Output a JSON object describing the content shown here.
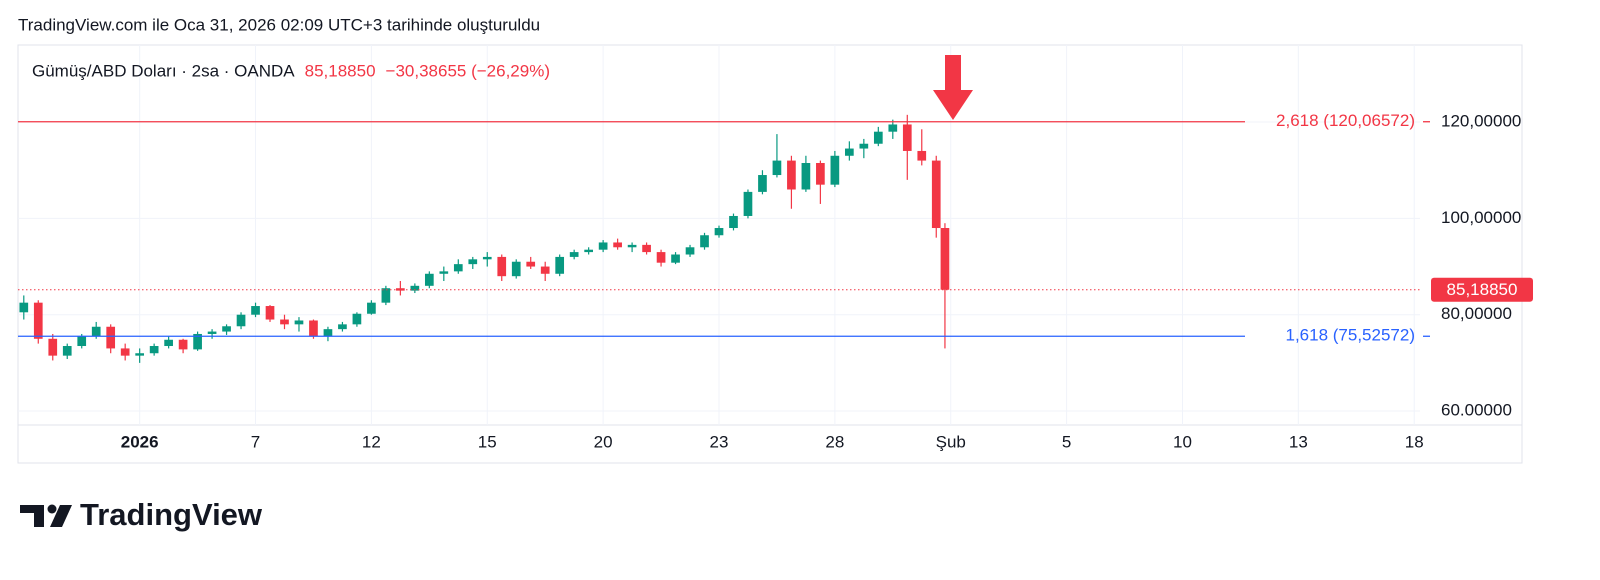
{
  "header": {
    "created": "TradingView.com ile Oca 31, 2026 02:09 UTC+3 tarihinde oluşturuldu"
  },
  "chart_data": {
    "type": "candlestick",
    "title": "Gümüş/ABD Doları · 2sa · OANDA",
    "last_price": {
      "value": 85.1885,
      "label": "85,18850"
    },
    "change": "−30,38655 (−26,29%)",
    "up_color": "#089981",
    "down_color": "#f23645",
    "x": [
      -1.0,
      -0.875,
      -0.75,
      -0.625,
      -0.5,
      -0.375,
      -0.25,
      -0.125,
      0,
      0.125,
      0.25,
      0.375,
      0.5,
      0.625,
      0.75,
      0.875,
      1.0,
      1.125,
      1.25,
      1.375,
      1.5,
      1.625,
      1.75,
      1.875,
      2.0,
      2.125,
      2.25,
      2.375,
      2.5,
      2.625,
      2.75,
      2.875,
      3.0,
      3.125,
      3.25,
      3.375,
      3.5,
      3.625,
      3.75,
      3.875,
      4.0,
      4.125,
      4.25,
      4.375,
      4.5,
      4.625,
      4.75,
      4.875,
      5.0,
      5.125,
      5.25,
      5.375,
      5.5,
      5.625,
      5.75,
      5.875,
      6.0,
      6.125,
      6.25,
      6.375,
      6.5,
      6.625,
      6.75,
      6.875,
      6.95
    ],
    "open": [
      80.5,
      82.5,
      75,
      71.5,
      73.5,
      75.5,
      77.5,
      73,
      71.5,
      72,
      73.5,
      74.8,
      72.8,
      76,
      76.5,
      77.6,
      80,
      81.8,
      79,
      78,
      78.8,
      75.5,
      77,
      78,
      80.2,
      82.5,
      85.5,
      85,
      86,
      88.5,
      89,
      90.5,
      91.5,
      92,
      88,
      91,
      90,
      88.5,
      92,
      93,
      93.5,
      95,
      94,
      94.5,
      93,
      90.8,
      92.5,
      94,
      96.5,
      98,
      100.5,
      105.5,
      109,
      112,
      106,
      111.5,
      107,
      113,
      114.5,
      115.5,
      118,
      119.5,
      114,
      112,
      98
    ],
    "high": [
      84,
      83,
      76,
      74,
      76,
      78.5,
      78,
      74,
      73,
      74,
      75.5,
      75,
      76.5,
      77,
      78,
      80.5,
      82.5,
      82,
      80,
      79.5,
      79,
      77.5,
      78.5,
      80.5,
      83,
      86,
      87,
      86.5,
      89,
      90,
      91.5,
      92,
      93,
      92.5,
      91.5,
      92,
      91,
      92.5,
      93.5,
      94,
      95.5,
      95.8,
      95,
      95,
      93.5,
      93,
      94.5,
      97,
      98.5,
      101,
      106,
      110,
      117.5,
      113,
      113,
      112,
      114,
      116,
      116.5,
      119,
      120.5,
      121.5,
      118.5,
      113,
      99
    ],
    "low": [
      79,
      74,
      70.5,
      70.8,
      73,
      75,
      72,
      70.5,
      70,
      71.5,
      73,
      72,
      72.5,
      75,
      75.8,
      77,
      79.5,
      78.5,
      77,
      76.5,
      75,
      74.5,
      76.5,
      77.5,
      80,
      82,
      84,
      84.5,
      85.5,
      87,
      88.5,
      89.5,
      90,
      87,
      87.5,
      89.5,
      87,
      88,
      91.5,
      92.5,
      93,
      93.5,
      93,
      92.5,
      90,
      90.5,
      92,
      93.5,
      96,
      97.5,
      100,
      105,
      108.5,
      102,
      105.5,
      103,
      106.5,
      112,
      112.5,
      115,
      116.5,
      108,
      111,
      96,
      73
    ],
    "close": [
      82.5,
      75,
      71.5,
      73.5,
      75.5,
      77.5,
      73,
      71.5,
      72,
      73.5,
      74.8,
      72.8,
      76,
      76.5,
      77.6,
      80,
      81.8,
      79,
      78,
      78.8,
      75.5,
      77,
      78,
      80.2,
      82.5,
      85.5,
      85,
      86,
      88.5,
      89,
      90.5,
      91.5,
      92,
      88,
      91,
      90,
      88.5,
      92,
      93,
      93.5,
      95,
      94,
      94.5,
      93,
      90.8,
      92.5,
      94,
      96.5,
      98,
      100.5,
      105.5,
      109,
      112,
      106,
      111.5,
      107,
      113,
      114.5,
      115.5,
      118,
      119.5,
      114,
      112,
      98,
      85.1885
    ],
    "xlim": [
      -1.05,
      11.05
    ],
    "xticks": [
      {
        "value": 0,
        "label": "2026"
      },
      {
        "value": 1,
        "label": "7"
      },
      {
        "value": 2,
        "label": "12"
      },
      {
        "value": 3,
        "label": "15"
      },
      {
        "value": 4,
        "label": "20"
      },
      {
        "value": 5,
        "label": "23"
      },
      {
        "value": 6,
        "label": "28"
      },
      {
        "value": 7,
        "label": "Şub"
      },
      {
        "value": 8,
        "label": "5"
      },
      {
        "value": 9,
        "label": "10"
      },
      {
        "value": 10,
        "label": "13"
      },
      {
        "value": 11,
        "label": "18"
      }
    ],
    "ylim": [
      57.1,
      136
    ],
    "yticks": [
      {
        "value": 60,
        "label": "60.00000"
      },
      {
        "value": 80,
        "label": "80,00000"
      },
      {
        "value": 100,
        "label": "100,00000"
      },
      {
        "value": 120,
        "label": "120,00000"
      }
    ],
    "levels": [
      {
        "value": 120.06572,
        "label": "2,618 (120,06572)",
        "color": "#f23645"
      },
      {
        "value": 75.52572,
        "label": "1,618 (75,52572)",
        "color": "#2962ff"
      }
    ]
  },
  "footer": {
    "brand": "TradingView"
  }
}
